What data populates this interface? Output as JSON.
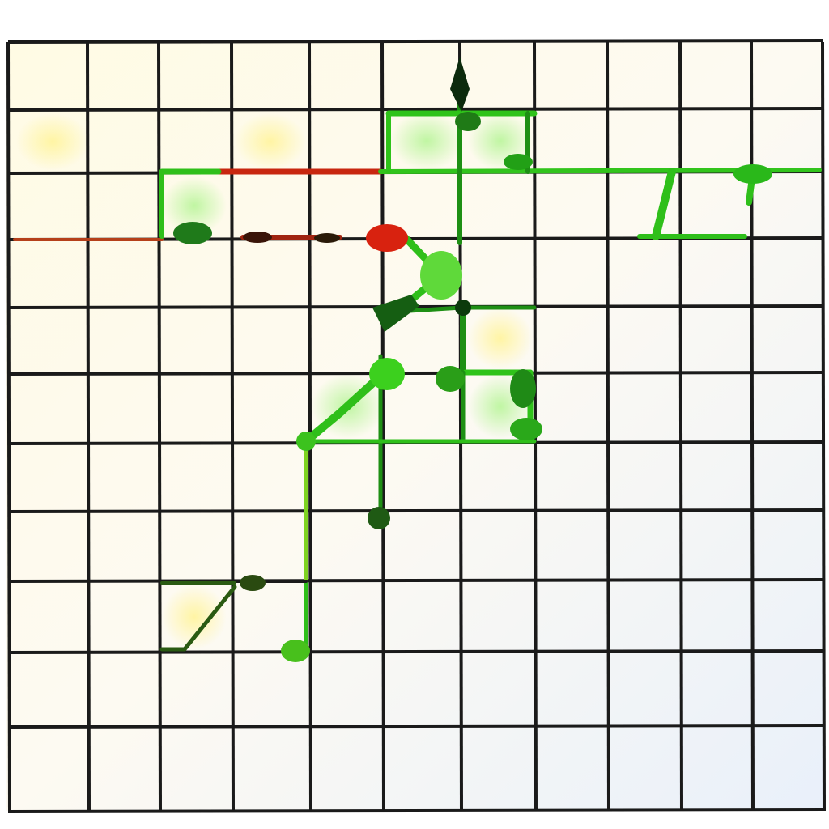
{
  "grid": {
    "columns": 11,
    "rows": 11,
    "line_color": "#1a1a1a",
    "cell_color_warm": "#fffbe6",
    "cell_color_cool": "#eef4fb"
  },
  "colors": {
    "path_green": "#2ecc1a",
    "path_green_light": "#8ff06a",
    "path_red": "#d8220f",
    "node_dark": "#0e3a0e",
    "wash_yellow": "#fff6b0"
  },
  "elements": {
    "start_marker": "red-node",
    "nodes": "graph-node",
    "edges": "graph-edge"
  }
}
